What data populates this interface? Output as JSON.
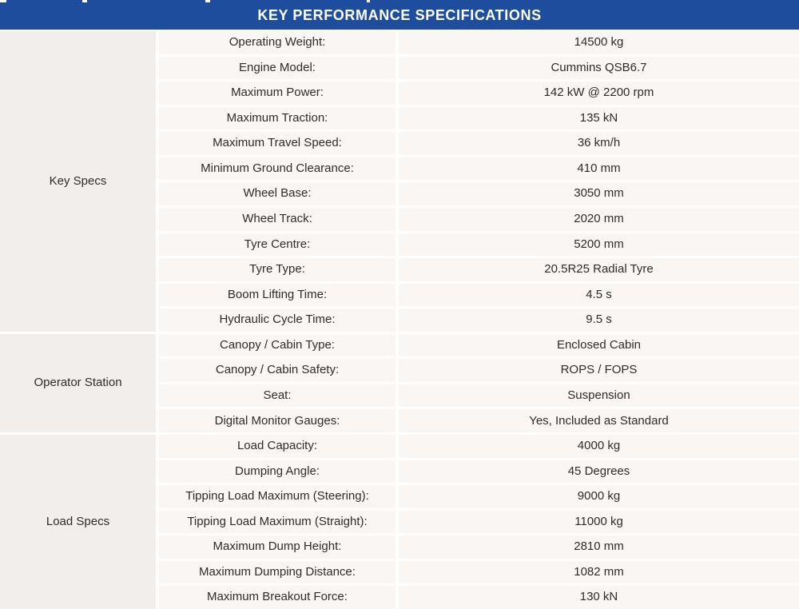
{
  "header": {
    "title": "KEY PERFORMANCE SPECIFICATIONS"
  },
  "colors": {
    "header_bg": "#1e4d9e",
    "header_text": "#ffffff",
    "cell_bg": "#faf6f3",
    "category_bg": "#f1eeeb",
    "divider": "#ffffff",
    "text": "#2e2c2b"
  },
  "sections": [
    {
      "category": "Key Specs",
      "rows": [
        {
          "label": "Operating Weight:",
          "value": "14500 kg"
        },
        {
          "label": "Engine Model:",
          "value": "Cummins QSB6.7"
        },
        {
          "label": "Maximum Power:",
          "value": "142 kW @ 2200 rpm"
        },
        {
          "label": "Maximum Traction:",
          "value": "135 kN"
        },
        {
          "label": "Maximum Travel Speed:",
          "value": "36 km/h"
        },
        {
          "label": "Minimum Ground Clearance:",
          "value": "410 mm"
        },
        {
          "label": "Wheel Base:",
          "value": "3050 mm"
        },
        {
          "label": "Wheel Track:",
          "value": "2020 mm"
        },
        {
          "label": "Tyre Centre:",
          "value": "5200 mm"
        },
        {
          "label": "Tyre Type:",
          "value": "20.5R25 Radial Tyre"
        },
        {
          "label": "Boom Lifting Time:",
          "value": "4.5 s"
        },
        {
          "label": "Hydraulic Cycle Time:",
          "value": "9.5 s"
        }
      ]
    },
    {
      "category": "Operator Station",
      "rows": [
        {
          "label": "Canopy / Cabin Type:",
          "value": "Enclosed Cabin"
        },
        {
          "label": "Canopy / Cabin Safety:",
          "value": "ROPS / FOPS"
        },
        {
          "label": "Seat:",
          "value": "Suspension"
        },
        {
          "label": "Digital Monitor Gauges:",
          "value": "Yes, Included as Standard"
        }
      ]
    },
    {
      "category": "Load Specs",
      "rows": [
        {
          "label": "Load Capacity:",
          "value": "4000 kg"
        },
        {
          "label": "Dumping Angle:",
          "value": "45 Degrees"
        },
        {
          "label": "Tipping Load Maximum (Steering):",
          "value": "9000 kg"
        },
        {
          "label": "Tipping Load Maximum (Straight):",
          "value": "11000 kg"
        },
        {
          "label": "Maximum Dump Height:",
          "value": "2810 mm"
        },
        {
          "label": "Maximum Dumping Distance:",
          "value": "1082 mm"
        },
        {
          "label": "Maximum Breakout Force:",
          "value": "130 kN"
        }
      ]
    }
  ]
}
